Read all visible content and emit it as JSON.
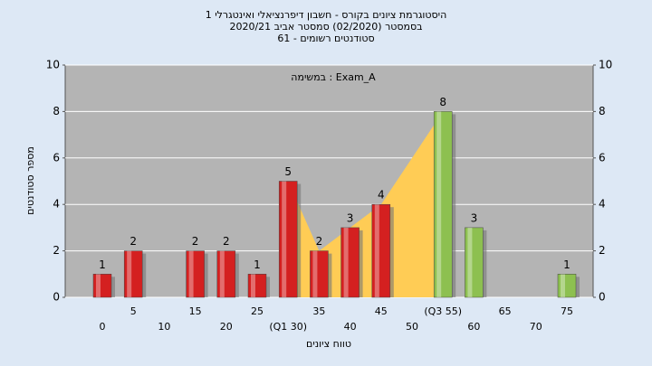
{
  "chart_data": {
    "type": "bar",
    "title": "היסטוגרמת ציונים בקורס - חשבון דיפרנציאלי ואינטגרלי 1",
    "subtitle": "בסמסטר  (02/2020)  סמסטר אביב 2020/21",
    "subtitle2": "סטודנטים רשומים - 61",
    "annotation": "במשימה : Exam_A",
    "y_label": "מספר סטודנטים",
    "x_label": "טווח ציונים",
    "categories": [
      "0",
      "5",
      "10",
      "15",
      "20",
      "25",
      "(Q1 30)",
      "35",
      "40",
      "45",
      "50",
      "(Q3 55)",
      "60",
      "65",
      "70",
      "75"
    ],
    "values": [
      1,
      2,
      null,
      2,
      2,
      1,
      5,
      2,
      3,
      4,
      null,
      8,
      3,
      null,
      null,
      1
    ],
    "colors": [
      "#d42020",
      "#d42020",
      null,
      "#d42020",
      "#d42020",
      "#d42020",
      "#d42020",
      "#d42020",
      "#d42020",
      "#d42020",
      null,
      "#8dc050",
      "#8dc050",
      null,
      null,
      "#8dc050"
    ],
    "area_color": "#ffcc55",
    "ylim": [
      0,
      10
    ],
    "yticks": [
      0,
      2,
      4,
      6,
      8,
      10
    ],
    "grid": true
  }
}
